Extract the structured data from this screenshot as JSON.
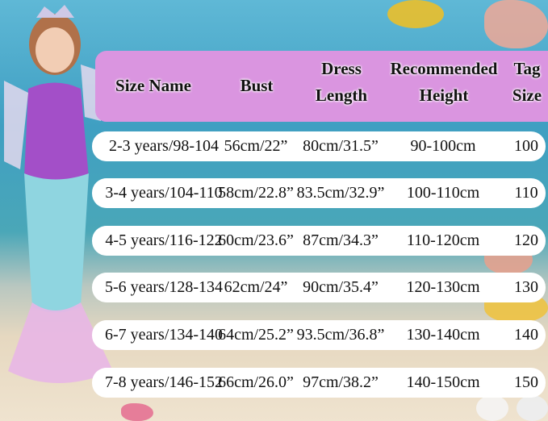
{
  "colors": {
    "header_band": "#da95e0",
    "row_band": "#ffffff"
  },
  "table": {
    "headers": [
      {
        "line1": "Size Name",
        "line2": ""
      },
      {
        "line1": "Bust",
        "line2": ""
      },
      {
        "line1": "Dress",
        "line2": "Length"
      },
      {
        "line1": "Recommended",
        "line2": "Height"
      },
      {
        "line1": "Tag",
        "line2": "Size"
      }
    ],
    "rows": [
      [
        "2-3 years/98-104",
        "56cm/22”",
        "80cm/31.5”",
        "90-100cm",
        "100"
      ],
      [
        "3-4 years/104-110",
        "58cm/22.8”",
        "83.5cm/32.9”",
        "100-110cm",
        "110"
      ],
      [
        "4-5 years/116-122",
        "60cm/23.6”",
        "87cm/34.3”",
        "110-120cm",
        "120"
      ],
      [
        "5-6 years/128-134",
        "62cm/24”",
        "90cm/35.4”",
        "120-130cm",
        "130"
      ],
      [
        "6-7 years/134-140",
        "64cm/25.2”",
        "93.5cm/36.8”",
        "130-140cm",
        "140"
      ],
      [
        "7-8 years/146-152",
        "66cm/26.0”",
        "97cm/38.2”",
        "140-150cm",
        "150"
      ]
    ]
  }
}
